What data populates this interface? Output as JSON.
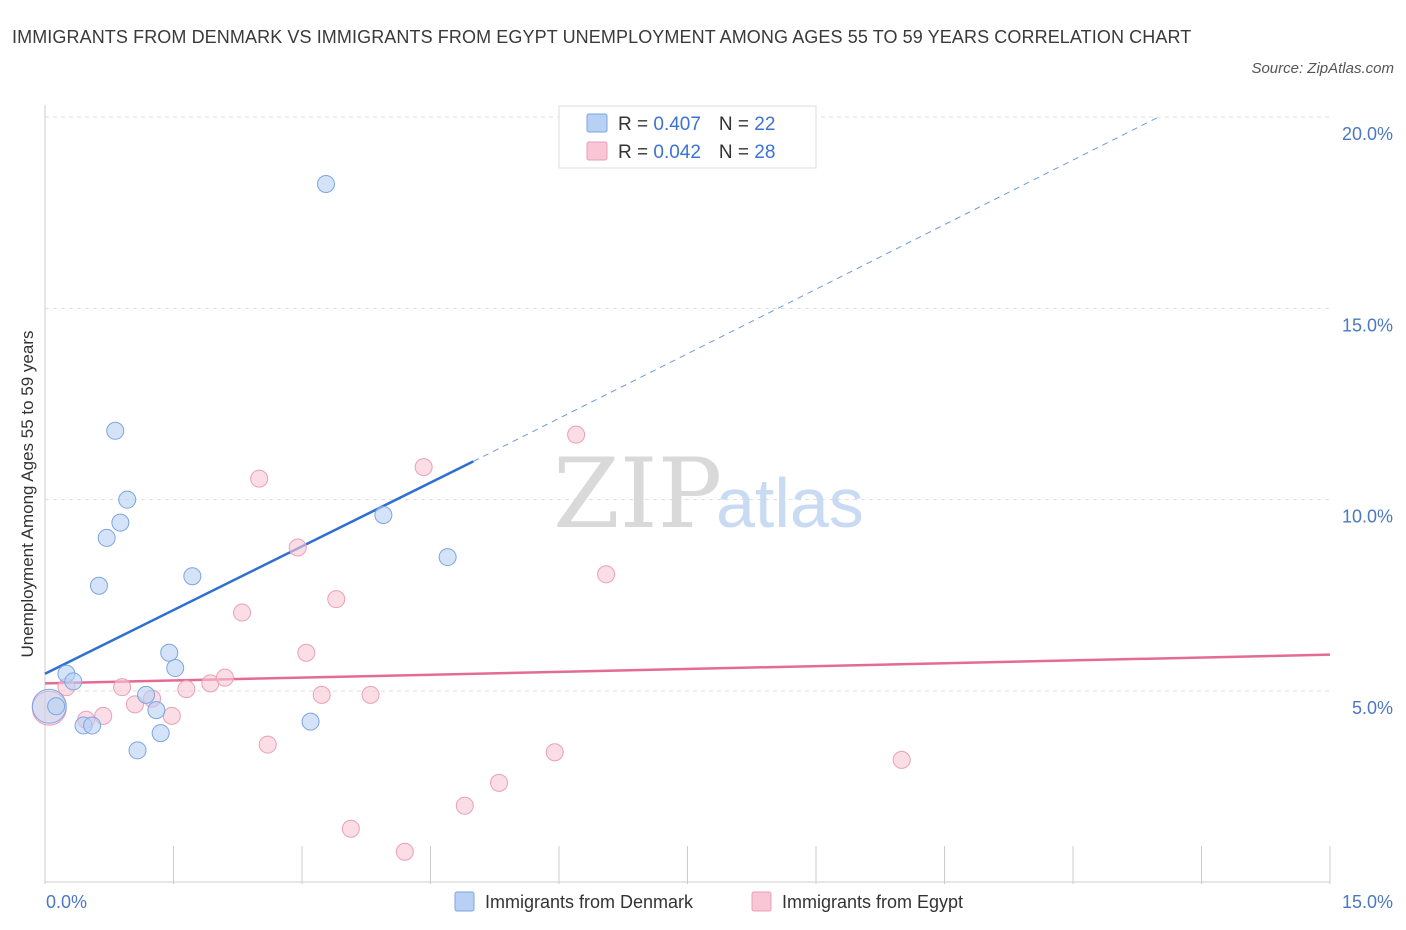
{
  "title": "IMMIGRANTS FROM DENMARK VS IMMIGRANTS FROM EGYPT UNEMPLOYMENT AMONG AGES 55 TO 59 YEARS CORRELATION CHART",
  "source": "Source: ZipAtlas.com",
  "watermark": {
    "zip": "ZIP",
    "atlas": "atlas"
  },
  "colors": {
    "denmark_fill": "#b8d0f3",
    "denmark_stroke": "#7aa6e2",
    "denmark_line": "#2f6fd0",
    "egypt_fill": "#f8c6d5",
    "egypt_stroke": "#ec9fb8",
    "egypt_line": "#e36b95",
    "grid": "#dddddd",
    "tick": "#4a78c4"
  },
  "legend": {
    "rows": [
      {
        "r_label": "R = ",
        "r_value": "0.407",
        "n_label": "N = ",
        "n_value": "22"
      },
      {
        "r_label": "R = ",
        "r_value": "0.042",
        "n_label": "N = ",
        "n_value": "28"
      }
    ]
  },
  "chart_data": {
    "type": "scatter",
    "title": "IMMIGRANTS FROM DENMARK VS IMMIGRANTS FROM EGYPT UNEMPLOYMENT AMONG AGES 55 TO 59 YEARS CORRELATION CHART",
    "xlabel": "",
    "ylabel": "Unemployment Among Ages 55 to 59 years",
    "xlim": [
      0,
      15
    ],
    "ylim": [
      0,
      20
    ],
    "x_tick_labels": [
      "0.0%",
      "15.0%"
    ],
    "y_ticks": [
      5,
      10,
      15,
      20
    ],
    "y_tick_labels": [
      "5.0%",
      "10.0%",
      "15.0%",
      "20.0%"
    ],
    "grid": true,
    "legend_position": "bottom-center",
    "series": [
      {
        "name": "Immigrants from Denmark",
        "R": 0.407,
        "N": 22,
        "points": [
          {
            "x": 0.05,
            "y": 4.6,
            "big": true
          },
          {
            "x": 0.13,
            "y": 4.6
          },
          {
            "x": 0.25,
            "y": 5.45
          },
          {
            "x": 0.33,
            "y": 5.25
          },
          {
            "x": 0.45,
            "y": 4.1
          },
          {
            "x": 0.55,
            "y": 4.1
          },
          {
            "x": 0.63,
            "y": 7.75
          },
          {
            "x": 0.72,
            "y": 9.0
          },
          {
            "x": 0.82,
            "y": 11.8
          },
          {
            "x": 0.88,
            "y": 9.4
          },
          {
            "x": 0.96,
            "y": 10.0
          },
          {
            "x": 1.08,
            "y": 3.45
          },
          {
            "x": 1.18,
            "y": 4.9
          },
          {
            "x": 1.3,
            "y": 4.5
          },
          {
            "x": 1.35,
            "y": 3.9
          },
          {
            "x": 1.45,
            "y": 6.0
          },
          {
            "x": 1.52,
            "y": 5.6
          },
          {
            "x": 1.72,
            "y": 8.0
          },
          {
            "x": 3.1,
            "y": 4.2
          },
          {
            "x": 3.28,
            "y": 18.25
          },
          {
            "x": 3.95,
            "y": 9.6
          },
          {
            "x": 4.7,
            "y": 8.5
          }
        ],
        "trend": {
          "x0": 0.0,
          "y0": 5.45,
          "x1": 5.0,
          "y1": 11.0,
          "dash_x1": 13.0,
          "dash_y1": 20.0
        }
      },
      {
        "name": "Immigrants from Egypt",
        "R": 0.042,
        "N": 28,
        "points": [
          {
            "x": 0.05,
            "y": 4.55,
            "big": true
          },
          {
            "x": 0.25,
            "y": 5.1
          },
          {
            "x": 0.48,
            "y": 4.25
          },
          {
            "x": 0.68,
            "y": 4.35
          },
          {
            "x": 0.9,
            "y": 5.1
          },
          {
            "x": 1.05,
            "y": 4.65
          },
          {
            "x": 1.25,
            "y": 4.8
          },
          {
            "x": 1.48,
            "y": 4.35
          },
          {
            "x": 1.65,
            "y": 5.05
          },
          {
            "x": 1.93,
            "y": 5.2
          },
          {
            "x": 2.1,
            "y": 5.35
          },
          {
            "x": 2.3,
            "y": 7.05
          },
          {
            "x": 2.5,
            "y": 10.55
          },
          {
            "x": 2.6,
            "y": 3.6
          },
          {
            "x": 2.95,
            "y": 8.75
          },
          {
            "x": 3.05,
            "y": 6.0
          },
          {
            "x": 3.23,
            "y": 4.9
          },
          {
            "x": 3.4,
            "y": 7.4
          },
          {
            "x": 3.57,
            "y": 1.4
          },
          {
            "x": 3.8,
            "y": 4.9
          },
          {
            "x": 4.2,
            "y": 0.8
          },
          {
            "x": 4.42,
            "y": 10.85
          },
          {
            "x": 4.9,
            "y": 2.0
          },
          {
            "x": 5.3,
            "y": 2.6
          },
          {
            "x": 5.95,
            "y": 3.4
          },
          {
            "x": 6.2,
            "y": 11.7
          },
          {
            "x": 6.55,
            "y": 8.05
          },
          {
            "x": 10.0,
            "y": 3.2
          }
        ],
        "trend": {
          "x0": 0.0,
          "y0": 5.2,
          "x1": 15.0,
          "y1": 5.95
        }
      }
    ]
  }
}
